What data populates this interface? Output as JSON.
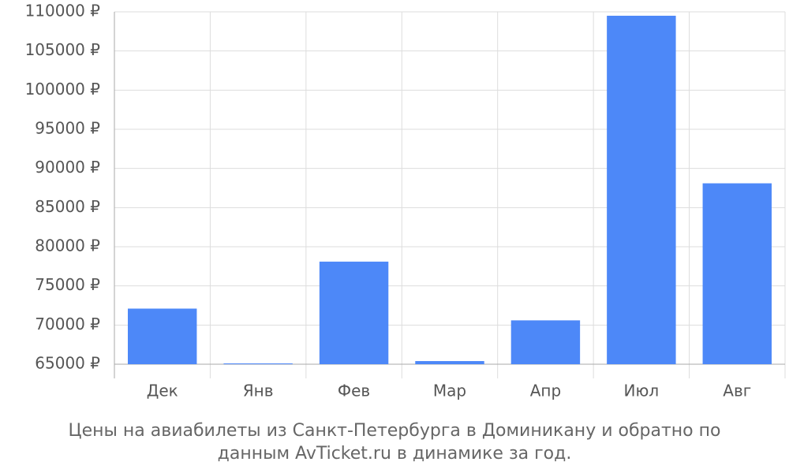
{
  "chart_data": {
    "type": "bar",
    "title": "Цены на авиабилеты из Санкт-Петербурга в Доминикану и обратно по данным AvTicket.ru в динамике за год.",
    "categories": [
      "Дек",
      "Янв",
      "Фев",
      "Мар",
      "Апр",
      "Июл",
      "Авг"
    ],
    "values": [
      72100,
      65100,
      78100,
      65400,
      70600,
      109500,
      88100
    ],
    "color": "#4d88f8",
    "ylim": [
      65000,
      110000
    ],
    "yticks": [
      {
        "value": 65000,
        "label": "65000 ₽"
      },
      {
        "value": 70000,
        "label": "70000 ₽"
      },
      {
        "value": 75000,
        "label": "75000 ₽"
      },
      {
        "value": 80000,
        "label": "80000 ₽"
      },
      {
        "value": 85000,
        "label": "85000 ₽"
      },
      {
        "value": 90000,
        "label": "90000 ₽"
      },
      {
        "value": 95000,
        "label": "95000 ₽"
      },
      {
        "value": 100000,
        "label": "100000 ₽"
      },
      {
        "value": 105000,
        "label": "105000 ₽"
      },
      {
        "value": 110000,
        "label": "110000 ₽"
      }
    ],
    "grid": true
  }
}
